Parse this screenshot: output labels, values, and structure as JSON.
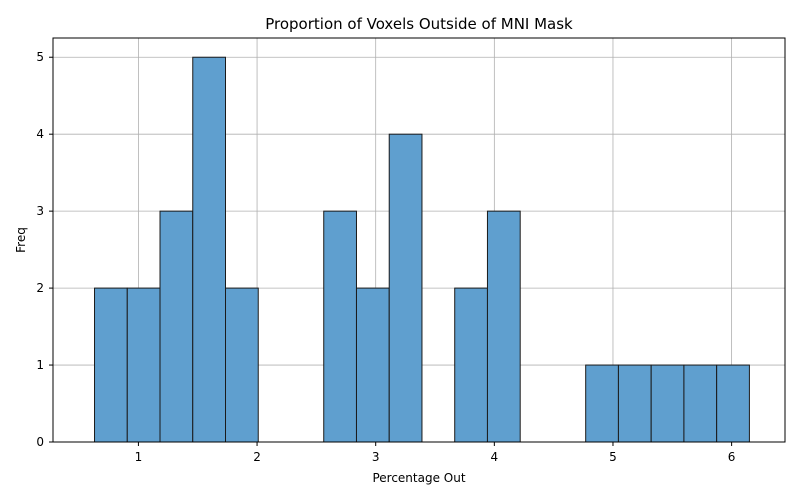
{
  "chart_data": {
    "type": "bar",
    "title": "Proportion of Voxels Outside of MNI Mask",
    "xlabel": "Percentage Out",
    "ylabel": "Freq",
    "xlim": [
      0.28,
      6.45
    ],
    "ylim": [
      0,
      5.25
    ],
    "xticks": [
      1,
      2,
      3,
      4,
      5,
      6
    ],
    "yticks": [
      0,
      1,
      2,
      3,
      4,
      5
    ],
    "grid": true,
    "bin_edges": [
      0.63,
      0.906,
      1.182,
      1.458,
      1.734,
      2.01,
      2.286,
      2.562,
      2.838,
      3.114,
      3.39,
      3.666,
      3.942,
      4.218,
      4.494,
      4.77,
      5.046,
      5.322,
      5.598,
      5.874,
      6.15
    ],
    "values": [
      2,
      2,
      3,
      5,
      2,
      0,
      0,
      3,
      2,
      4,
      0,
      2,
      3,
      0,
      0,
      1,
      1,
      1,
      1,
      1
    ],
    "bar_color": "#5f9fcf"
  }
}
